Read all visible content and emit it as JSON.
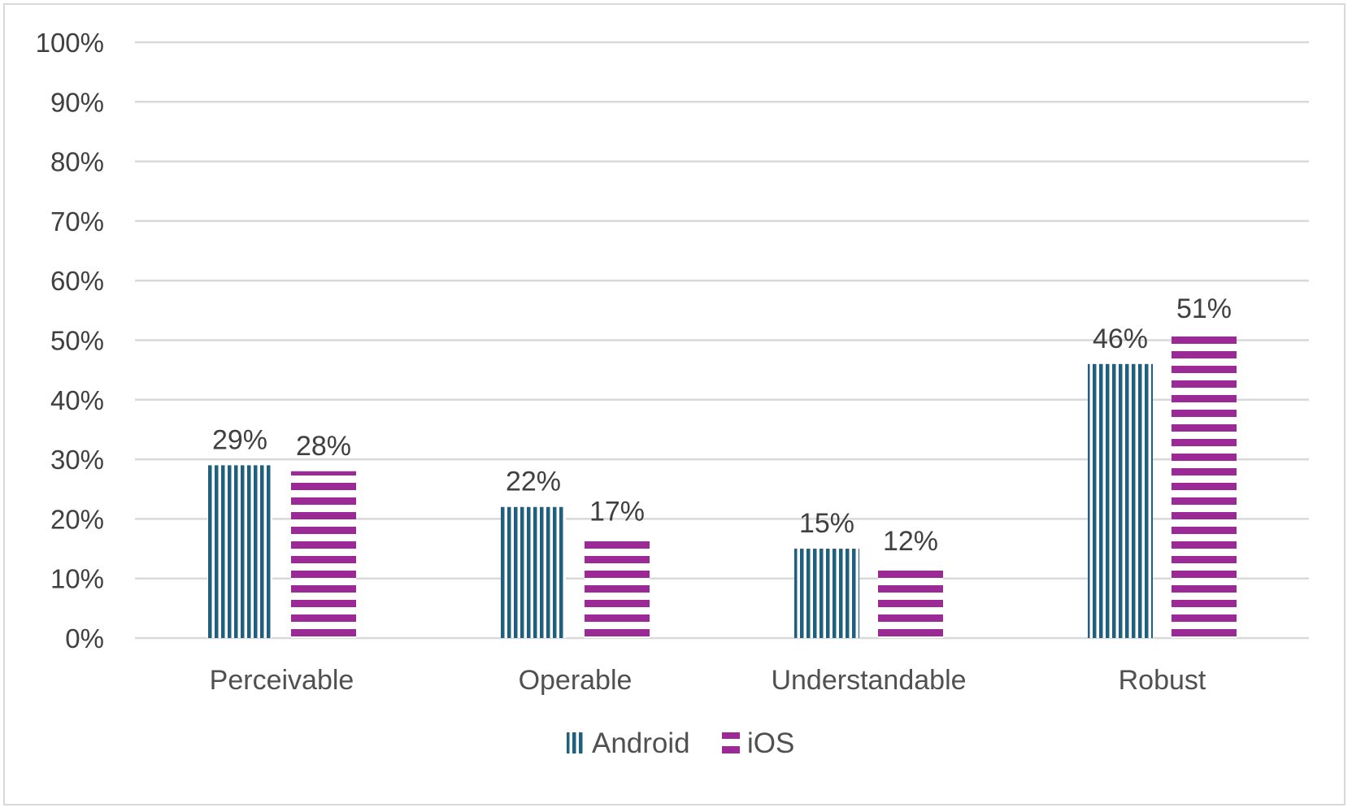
{
  "chart_data": {
    "type": "bar",
    "categories": [
      "Perceivable",
      "Operable",
      "Understandable",
      "Robust"
    ],
    "series": [
      {
        "name": "Android",
        "values": [
          29,
          22,
          15,
          46
        ],
        "labels": [
          "29%",
          "22%",
          "15%",
          "46%"
        ],
        "color": "#1f5f7f",
        "pattern": "vertical-stripes"
      },
      {
        "name": "iOS",
        "values": [
          28,
          17,
          12,
          51
        ],
        "labels": [
          "28%",
          "17%",
          "12%",
          "51%"
        ],
        "color": "#9b2a96",
        "pattern": "horizontal-stripes"
      }
    ],
    "y_ticks": [
      "0%",
      "10%",
      "20%",
      "30%",
      "40%",
      "50%",
      "60%",
      "70%",
      "80%",
      "90%",
      "100%"
    ],
    "ylim": [
      0,
      100
    ],
    "grid": true,
    "legend_position": "bottom",
    "title": "",
    "xlabel": "",
    "ylabel": ""
  }
}
